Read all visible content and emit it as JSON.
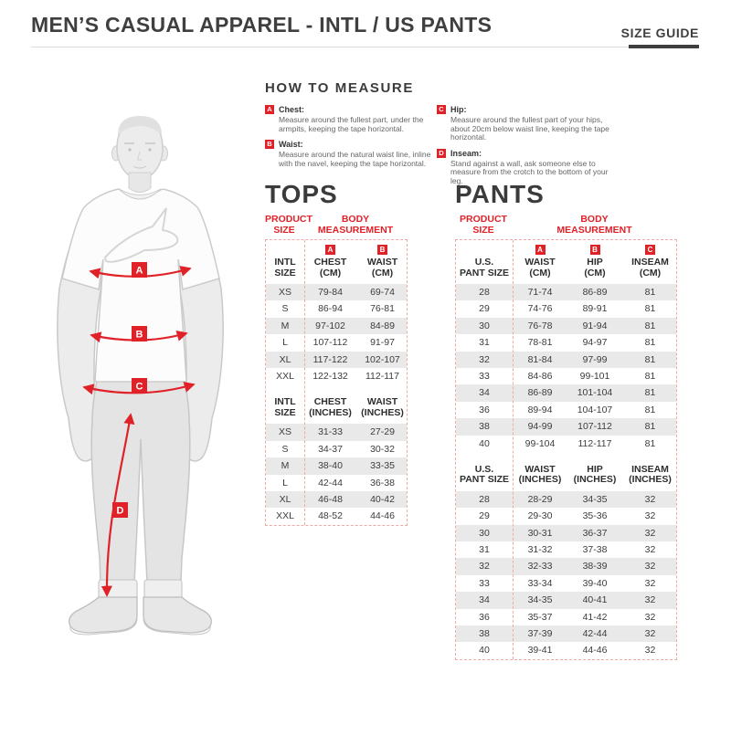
{
  "colors": {
    "accent_red": "#e02128",
    "title_gray": "#3f3f3f",
    "row_stripe": "#e9e9e9",
    "dotted_border": "#f0aaa4"
  },
  "header": {
    "title": "MEN’S CASUAL APPAREL - INTL / US PANTS",
    "size_guide_label": "SIZE GUIDE"
  },
  "how_to_measure": {
    "title": "HOW TO MEASURE",
    "items": [
      {
        "letter": "A",
        "label": "Chest:",
        "text": "Measure around the fullest part, under the armpits, keeping the tape horizontal."
      },
      {
        "letter": "B",
        "label": "Waist:",
        "text": "Measure around the natural waist line, inline with the navel, keeping the tape horizontal."
      },
      {
        "letter": "C",
        "label": "Hip:",
        "text": "Measure around the fullest part of your hips, about 20cm below waist line, keeping the tape horizontal."
      },
      {
        "letter": "D",
        "label": "Inseam:",
        "text": "Stand against a wall, ask someone else to measure from the crotch to the bottom of your leg."
      }
    ]
  },
  "figure": {
    "markers": [
      "A",
      "B",
      "C",
      "D"
    ]
  },
  "tops": {
    "title": "TOPS",
    "product_size_label": "PRODUCT\nSIZE",
    "body_measurement_label": "BODY\nMEASUREMENT",
    "cm": {
      "size_header": "INTL\nSIZE",
      "columns": [
        {
          "letter": "A",
          "label": "CHEST\n(CM)"
        },
        {
          "letter": "B",
          "label": "WAIST\n(CM)"
        }
      ],
      "rows": [
        [
          "XS",
          "79-84",
          "69-74"
        ],
        [
          "S",
          "86-94",
          "76-81"
        ],
        [
          "M",
          "97-102",
          "84-89"
        ],
        [
          "L",
          "107-112",
          "91-97"
        ],
        [
          "XL",
          "117-122",
          "102-107"
        ],
        [
          "XXL",
          "122-132",
          "112-117"
        ]
      ]
    },
    "inches": {
      "size_header": "INTL\nSIZE",
      "columns": [
        {
          "label": "CHEST\n(INCHES)"
        },
        {
          "label": "WAIST\n(INCHES)"
        }
      ],
      "rows": [
        [
          "XS",
          "31-33",
          "27-29"
        ],
        [
          "S",
          "34-37",
          "30-32"
        ],
        [
          "M",
          "38-40",
          "33-35"
        ],
        [
          "L",
          "42-44",
          "36-38"
        ],
        [
          "XL",
          "46-48",
          "40-42"
        ],
        [
          "XXL",
          "48-52",
          "44-46"
        ]
      ]
    }
  },
  "pants": {
    "title": "PANTS",
    "product_size_label": "PRODUCT\nSIZE",
    "body_measurement_label": "BODY\nMEASUREMENT",
    "cm": {
      "size_header": "U.S.\nPANT SIZE",
      "columns": [
        {
          "letter": "A",
          "label": "WAIST\n(CM)"
        },
        {
          "letter": "B",
          "label": "HIP\n(CM)"
        },
        {
          "letter": "C",
          "label": "INSEAM\n(CM)"
        }
      ],
      "rows": [
        [
          "28",
          "71-74",
          "86-89",
          "81"
        ],
        [
          "29",
          "74-76",
          "89-91",
          "81"
        ],
        [
          "30",
          "76-78",
          "91-94",
          "81"
        ],
        [
          "31",
          "78-81",
          "94-97",
          "81"
        ],
        [
          "32",
          "81-84",
          "97-99",
          "81"
        ],
        [
          "33",
          "84-86",
          "99-101",
          "81"
        ],
        [
          "34",
          "86-89",
          "101-104",
          "81"
        ],
        [
          "36",
          "89-94",
          "104-107",
          "81"
        ],
        [
          "38",
          "94-99",
          "107-112",
          "81"
        ],
        [
          "40",
          "99-104",
          "112-117",
          "81"
        ]
      ]
    },
    "inches": {
      "size_header": "U.S.\nPANT SIZE",
      "columns": [
        {
          "label": "WAIST\n(INCHES)"
        },
        {
          "label": "HIP\n(INCHES)"
        },
        {
          "label": "INSEAM\n(INCHES)"
        }
      ],
      "rows": [
        [
          "28",
          "28-29",
          "34-35",
          "32"
        ],
        [
          "29",
          "29-30",
          "35-36",
          "32"
        ],
        [
          "30",
          "30-31",
          "36-37",
          "32"
        ],
        [
          "31",
          "31-32",
          "37-38",
          "32"
        ],
        [
          "32",
          "32-33",
          "38-39",
          "32"
        ],
        [
          "33",
          "33-34",
          "39-40",
          "32"
        ],
        [
          "34",
          "34-35",
          "40-41",
          "32"
        ],
        [
          "36",
          "35-37",
          "41-42",
          "32"
        ],
        [
          "38",
          "37-39",
          "42-44",
          "32"
        ],
        [
          "40",
          "39-41",
          "44-46",
          "32"
        ]
      ]
    }
  }
}
